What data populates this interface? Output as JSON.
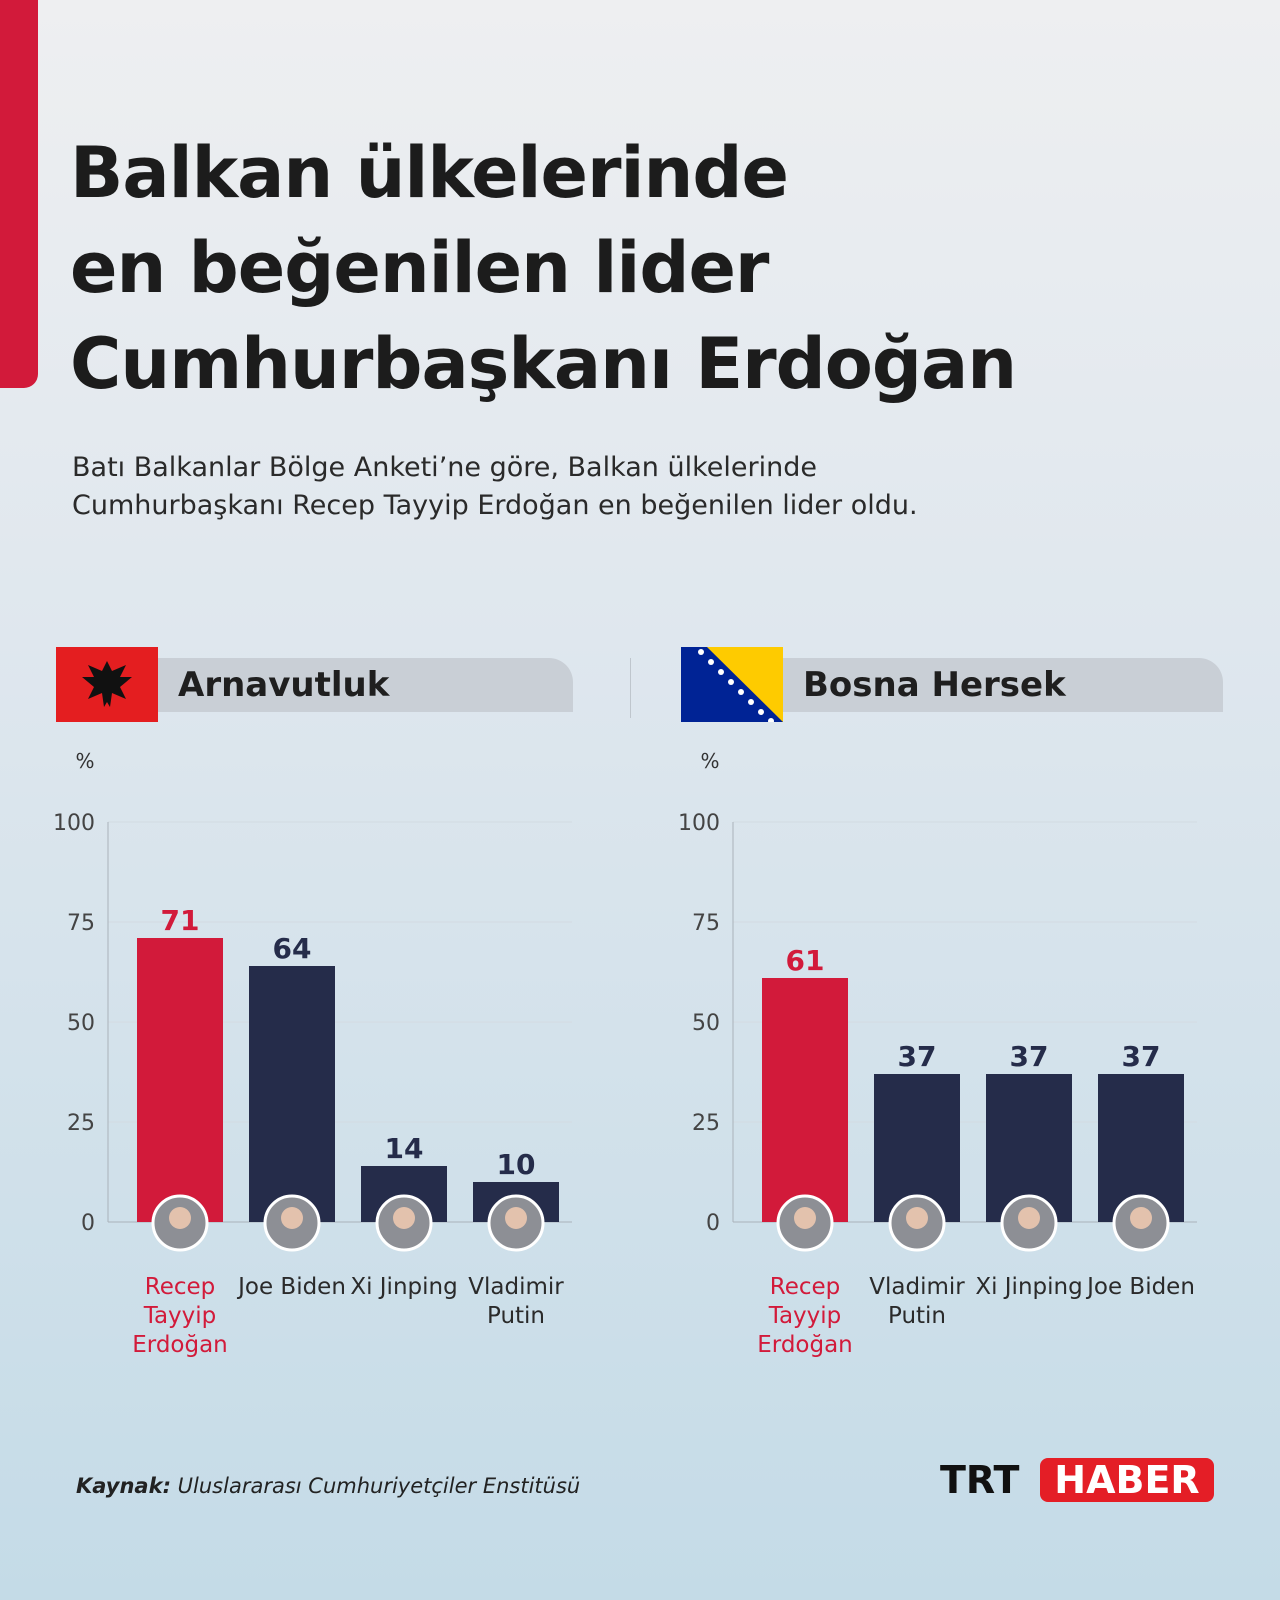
{
  "title": [
    "Balkan ülkelerinde",
    "en beğenilen lider",
    "Cumhurbaşkanı Erdoğan"
  ],
  "subtitle": [
    "Batı Balkanlar Bölge Anketi’ne göre, Balkan ülkelerinde",
    "Cumhurbaşkanı Recep Tayyip Erdoğan en beğenilen lider oldu."
  ],
  "source_label": "Kaynak:",
  "source": "Uluslararası Cumhuriyetçiler Enstitüsü",
  "logo": [
    "TRT",
    "HABER"
  ],
  "chart_data": [
    {
      "type": "bar",
      "title": "Arnavutluk",
      "y_label": "%",
      "categories": [
        "Recep Tayyip Erdoğan",
        "Joe Biden",
        "Xi Jinping",
        "Vladimir Putin"
      ],
      "values": [
        71,
        64,
        14,
        10
      ],
      "colors": [
        "#d21a3a",
        "#252c4a",
        "#252c4a",
        "#252c4a"
      ],
      "ylim": [
        0,
        100
      ],
      "yticks": [
        0,
        25,
        50,
        75,
        100
      ],
      "grid": true
    },
    {
      "type": "bar",
      "title": "Bosna Hersek",
      "y_label": "%",
      "categories": [
        "Recep Tayyip Erdoğan",
        "Vladimir Putin",
        "Xi Jinping",
        "Joe Biden"
      ],
      "values": [
        61,
        37,
        37,
        37
      ],
      "colors": [
        "#d21a3a",
        "#252c4a",
        "#252c4a",
        "#252c4a"
      ],
      "ylim": [
        0,
        100
      ],
      "yticks": [
        0,
        25,
        50,
        75,
        100
      ],
      "grid": true
    }
  ]
}
